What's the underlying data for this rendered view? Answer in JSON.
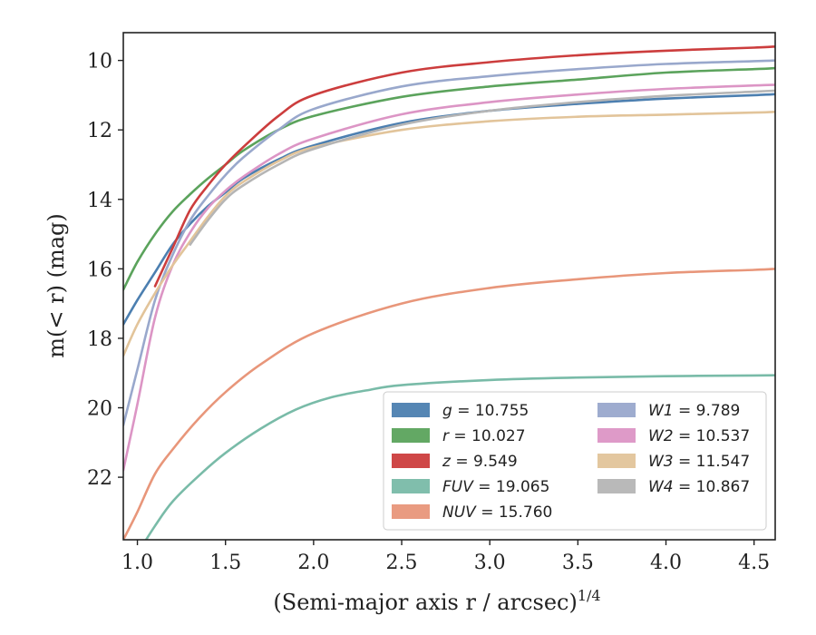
{
  "chart_data": {
    "type": "line",
    "title": "",
    "xlabel": "(Semi-major axis r / arcsec)",
    "xlabel_sup": "1/4",
    "ylabel": "m(< r) (mag)",
    "xlim": [
      0.92,
      4.62
    ],
    "ylim": [
      23.8,
      9.2
    ],
    "y_inverted": true,
    "grid": false,
    "x_ticks": [
      "1.0",
      "1.5",
      "2.0",
      "2.5",
      "3.0",
      "3.5",
      "4.0",
      "4.5"
    ],
    "y_ticks": [
      "10",
      "12",
      "14",
      "16",
      "18",
      "20",
      "22"
    ],
    "legend_placement": "lower-right",
    "legend_columns": 2,
    "series": [
      {
        "name": "g",
        "label": "g = 10.755",
        "color": "#4c7fb0",
        "x": [
          0.92,
          1.0,
          1.1,
          1.2,
          1.3,
          1.4,
          1.5,
          1.6,
          1.8,
          2.0,
          2.5,
          3.0,
          3.5,
          4.0,
          4.5,
          4.62
        ],
        "y": [
          17.6,
          16.9,
          16.1,
          15.3,
          14.7,
          14.2,
          13.8,
          13.4,
          12.85,
          12.45,
          11.8,
          11.45,
          11.25,
          11.1,
          11.0,
          10.97
        ]
      },
      {
        "name": "r",
        "label": "r = 10.027",
        "color": "#5ba35c",
        "x": [
          0.92,
          1.0,
          1.1,
          1.2,
          1.3,
          1.4,
          1.5,
          1.6,
          1.8,
          2.0,
          2.5,
          3.0,
          3.5,
          4.0,
          4.5,
          4.62
        ],
        "y": [
          16.6,
          15.8,
          15.0,
          14.35,
          13.85,
          13.4,
          13.0,
          12.6,
          12.0,
          11.6,
          11.05,
          10.75,
          10.55,
          10.35,
          10.25,
          10.22
        ]
      },
      {
        "name": "z",
        "label": "z = 9.549",
        "color": "#cc3d3d",
        "x": [
          1.1,
          1.2,
          1.3,
          1.4,
          1.5,
          1.6,
          1.8,
          2.0,
          2.5,
          3.0,
          3.5,
          4.0,
          4.5,
          4.62
        ],
        "y": [
          16.5,
          15.4,
          14.3,
          13.6,
          13.0,
          12.5,
          11.6,
          11.0,
          10.35,
          10.05,
          9.85,
          9.72,
          9.63,
          9.6
        ]
      },
      {
        "name": "FUV",
        "label": "FUV = 19.065",
        "color": "#79bba8",
        "x": [
          1.0,
          1.1,
          1.2,
          1.35,
          1.5,
          1.7,
          1.9,
          2.1,
          2.3,
          2.5,
          3.0,
          3.5,
          4.0,
          4.5,
          4.62
        ],
        "y": [
          24.2,
          23.4,
          22.7,
          21.95,
          21.3,
          20.6,
          20.05,
          19.7,
          19.5,
          19.35,
          19.2,
          19.13,
          19.09,
          19.07,
          19.065
        ]
      },
      {
        "name": "NUV",
        "label": "NUV = 15.760",
        "color": "#e8967a",
        "x": [
          0.92,
          1.0,
          1.1,
          1.2,
          1.35,
          1.5,
          1.7,
          2.0,
          2.5,
          3.0,
          3.5,
          4.0,
          4.5,
          4.62
        ],
        "y": [
          23.8,
          23.0,
          21.9,
          21.2,
          20.3,
          19.55,
          18.75,
          17.85,
          17.0,
          16.55,
          16.3,
          16.12,
          16.03,
          16.0
        ]
      },
      {
        "name": "W1",
        "label": "W1 = 9.789",
        "color": "#99a8cc",
        "x": [
          0.92,
          1.0,
          1.1,
          1.2,
          1.3,
          1.4,
          1.5,
          1.6,
          1.8,
          2.0,
          2.5,
          3.0,
          3.5,
          4.0,
          4.5,
          4.62
        ],
        "y": [
          20.5,
          18.9,
          16.9,
          15.6,
          14.6,
          13.9,
          13.3,
          12.8,
          12.0,
          11.4,
          10.75,
          10.45,
          10.25,
          10.1,
          10.02,
          10.0
        ]
      },
      {
        "name": "W2",
        "label": "W2 = 10.537",
        "color": "#dc95c5",
        "x": [
          0.92,
          1.0,
          1.1,
          1.2,
          1.3,
          1.4,
          1.5,
          1.6,
          1.8,
          2.0,
          2.5,
          3.0,
          3.5,
          4.0,
          4.5,
          4.62
        ],
        "y": [
          21.8,
          19.9,
          17.4,
          15.9,
          14.95,
          14.25,
          13.75,
          13.35,
          12.7,
          12.25,
          11.55,
          11.2,
          10.98,
          10.82,
          10.72,
          10.7
        ]
      },
      {
        "name": "W3",
        "label": "W3 = 11.547",
        "color": "#e2c49a",
        "x": [
          0.92,
          1.0,
          1.1,
          1.2,
          1.3,
          1.4,
          1.5,
          1.6,
          1.8,
          2.0,
          2.5,
          3.0,
          3.5,
          4.0,
          4.5,
          4.62
        ],
        "y": [
          18.5,
          17.6,
          16.7,
          15.9,
          15.2,
          14.5,
          13.9,
          13.5,
          12.9,
          12.5,
          12.0,
          11.75,
          11.62,
          11.56,
          11.5,
          11.48
        ]
      },
      {
        "name": "W4",
        "label": "W4 = 10.867",
        "color": "#b5b5b5",
        "x": [
          1.3,
          1.4,
          1.5,
          1.6,
          1.8,
          2.0,
          2.5,
          3.0,
          3.5,
          4.0,
          4.5,
          4.62
        ],
        "y": [
          15.3,
          14.6,
          14.0,
          13.6,
          13.0,
          12.55,
          11.85,
          11.45,
          11.2,
          11.02,
          10.9,
          10.87
        ]
      }
    ]
  }
}
